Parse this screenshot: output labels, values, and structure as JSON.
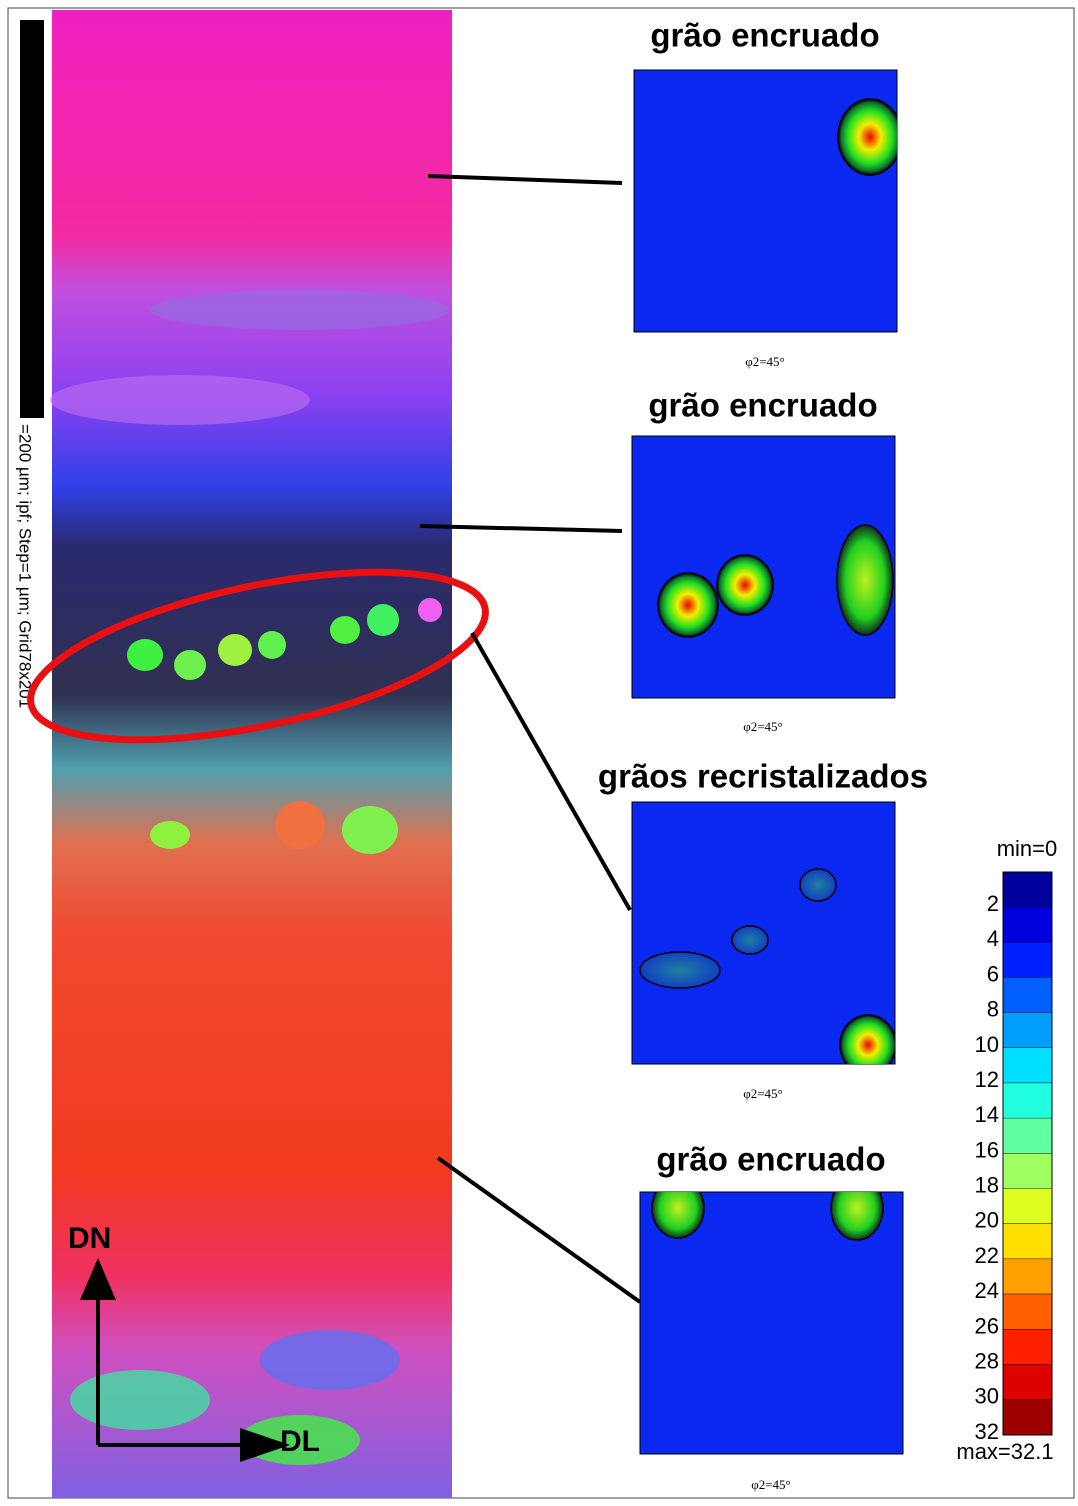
{
  "scale_bar_label": "=200 µm; ipf; Step=1 µm; Grid78x201",
  "orientation": {
    "vertical": "DN",
    "horizontal": "DL"
  },
  "panels": [
    {
      "title": "grão encruado",
      "caption": "φ2=45°"
    },
    {
      "title": "grão encruado",
      "caption": "φ2=45°"
    },
    {
      "title": "grãos recristalizados",
      "caption": "φ2=45°"
    },
    {
      "title": "grão encruado",
      "caption": "φ2=45°"
    }
  ],
  "colorbar": {
    "min_label": "min=0",
    "max_label": "max=32.1",
    "ticks": [
      2,
      4,
      6,
      8,
      10,
      12,
      14,
      16,
      18,
      20,
      22,
      24,
      26,
      28,
      30,
      32
    ]
  }
}
